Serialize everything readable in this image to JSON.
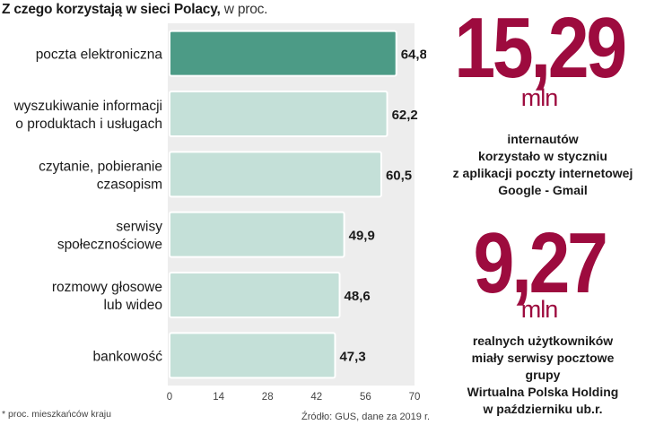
{
  "header": {
    "title_bold": "Z czego korzystają w sieci Polacy,",
    "title_unit": "w proc."
  },
  "chart_data": {
    "type": "bar",
    "orientation": "horizontal",
    "title": "Z czego korzystają w sieci Polacy, w proc.",
    "categories": [
      [
        "poczta elektroniczna"
      ],
      [
        "wyszukiwanie informacji",
        "o produktach i usługach"
      ],
      [
        "czytanie, pobieranie",
        "czasopism"
      ],
      [
        "serwisy",
        "społecznościowe"
      ],
      [
        "rozmowy głosowe",
        "lub wideo"
      ],
      [
        "bankowość"
      ]
    ],
    "values": [
      64.8,
      62.2,
      60.5,
      49.9,
      48.6,
      47.3
    ],
    "value_labels": [
      "64,8",
      "62,2",
      "60,5",
      "49,9",
      "48,6",
      "47,3"
    ],
    "xlim": [
      0,
      70
    ],
    "xticks": [
      0,
      14,
      28,
      42,
      56,
      70
    ],
    "highlight_index": 0,
    "colors": {
      "highlight": "#4c9b86",
      "bar": "#c4e0d8",
      "bar_border": "#ffffff",
      "panel": "#ededed"
    }
  },
  "footnote": "* proc. mieszkańców kraju",
  "source": "Źródło: GUS, dane za 2019 r.",
  "stats": [
    {
      "value": "15,29",
      "unit": "mln",
      "description": [
        "internautów",
        "korzystało w styczniu",
        "z aplikacji poczty internetowej",
        "Google - Gmail"
      ]
    },
    {
      "value": "9,27",
      "unit": "mln",
      "description": [
        "realnych użytkowników",
        "miały serwisy pocztowe",
        "grupy",
        "Wirtualna Polska Holding",
        "w październiku ub.r."
      ]
    }
  ],
  "accent_color": "#9d0b3e"
}
